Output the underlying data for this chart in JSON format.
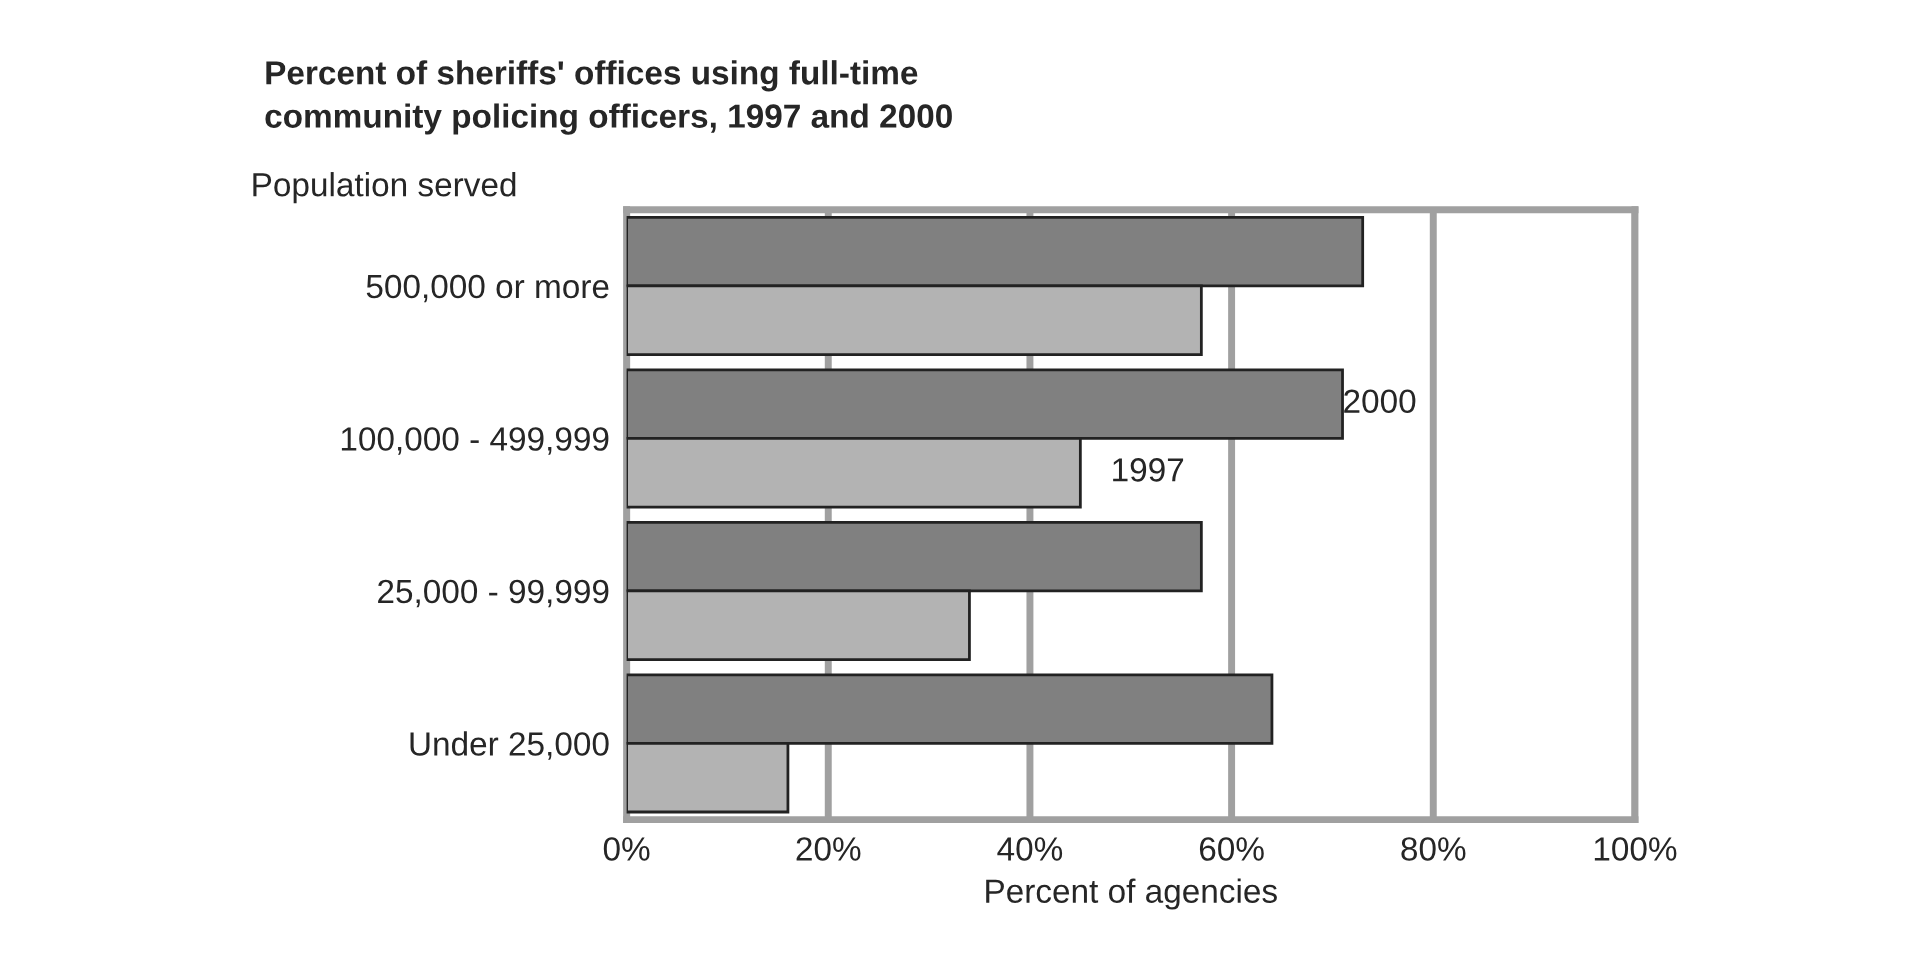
{
  "chart_data": {
    "type": "bar",
    "orientation": "horizontal",
    "title": "Percent of sheriffs' offices using full-time\ncommunity policing officers, 1997 and 2000",
    "xlabel": "Percent of agencies",
    "ylabel": "Population served",
    "categories": [
      "500,000 or more",
      "100,000 - 499,999",
      "25,000 - 99,999",
      "Under 25,000"
    ],
    "series": [
      {
        "name": "2000",
        "color": "#808080",
        "values": [
          73,
          71,
          57,
          64
        ]
      },
      {
        "name": "1997",
        "color": "#b3b3b3",
        "values": [
          57,
          45,
          34,
          16
        ]
      }
    ],
    "xlim": [
      0,
      100
    ],
    "xticks": [
      {
        "value": 0,
        "label": "0%"
      },
      {
        "value": 20,
        "label": "20%"
      },
      {
        "value": 40,
        "label": "40%"
      },
      {
        "value": 60,
        "label": "60%"
      },
      {
        "value": 80,
        "label": "80%"
      },
      {
        "value": 100,
        "label": "100%"
      }
    ],
    "grid": "x",
    "legend": false
  }
}
